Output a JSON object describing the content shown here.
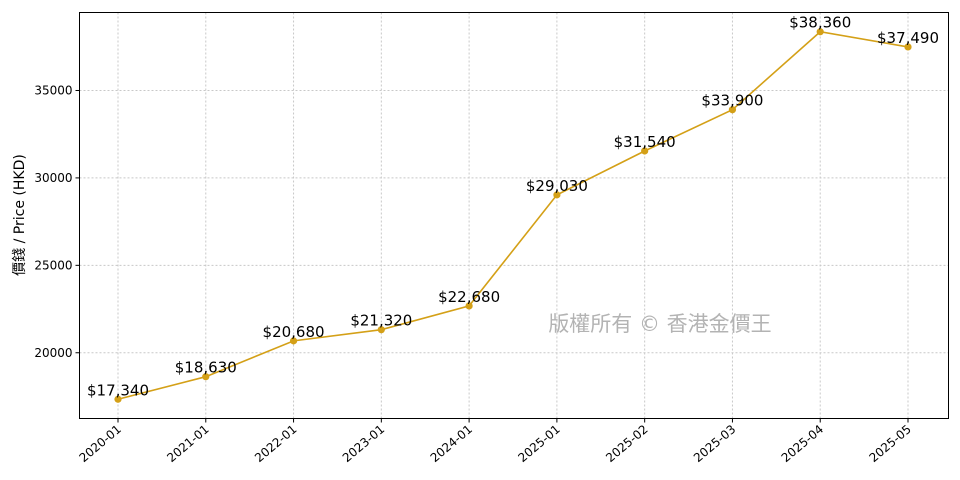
{
  "chart_data": {
    "type": "line",
    "title": "",
    "xlabel": "",
    "ylabel": "價錢 / Price (HKD)",
    "watermark": "版權所有 © 香港金價王",
    "categories": [
      "2020-01",
      "2021-01",
      "2022-01",
      "2023-01",
      "2024-01",
      "2025-01",
      "2025-02",
      "2025-03",
      "2025-04",
      "2025-05"
    ],
    "series": [
      {
        "values": [
          17340,
          18630,
          20680,
          21320,
          22680,
          29030,
          31540,
          33900,
          38360,
          37490
        ],
        "labels": [
          "$17,340",
          "$18,630",
          "$20,680",
          "$21,320",
          "$22,680",
          "$29,030",
          "$31,540",
          "$33,900",
          "$38,360",
          "$37,490"
        ],
        "color": "#d4a017"
      }
    ],
    "yticks": [
      20000,
      25000,
      30000,
      35000
    ],
    "ylim": [
      16240,
      39460
    ],
    "grid": true,
    "legend": "none"
  }
}
